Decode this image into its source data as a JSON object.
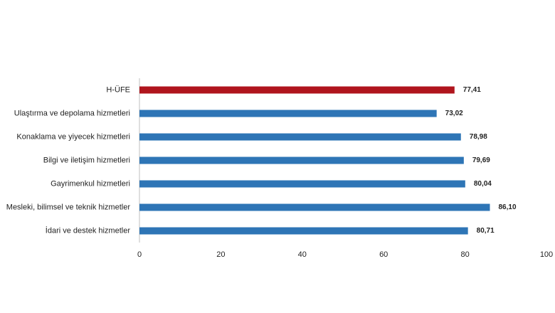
{
  "chart_data": {
    "type": "hbar",
    "categories": [
      "H-ÜFE",
      "Ulaştırma ve depolama hizmetleri",
      "Konaklama ve yiyecek hizmetleri",
      "Bilgi ve iletişim hizmetleri",
      "Gayrimenkul hizmetleri",
      "Mesleki, bilimsel ve teknik hizmetler",
      "İdari ve destek hizmetler"
    ],
    "values": [
      77.41,
      73.02,
      78.98,
      79.69,
      80.04,
      86.1,
      80.71
    ],
    "value_labels": [
      "77,41",
      "73,02",
      "78,98",
      "79,69",
      "80,04",
      "86,10",
      "80,71"
    ],
    "colors": [
      "#b0151d",
      "#2e75b6",
      "#2e75b6",
      "#2e75b6",
      "#2e75b6",
      "#2e75b6",
      "#2e75b6"
    ],
    "xlim": [
      0,
      100
    ],
    "xticks": [
      0,
      20,
      40,
      60,
      80,
      100
    ],
    "grid": false
  }
}
